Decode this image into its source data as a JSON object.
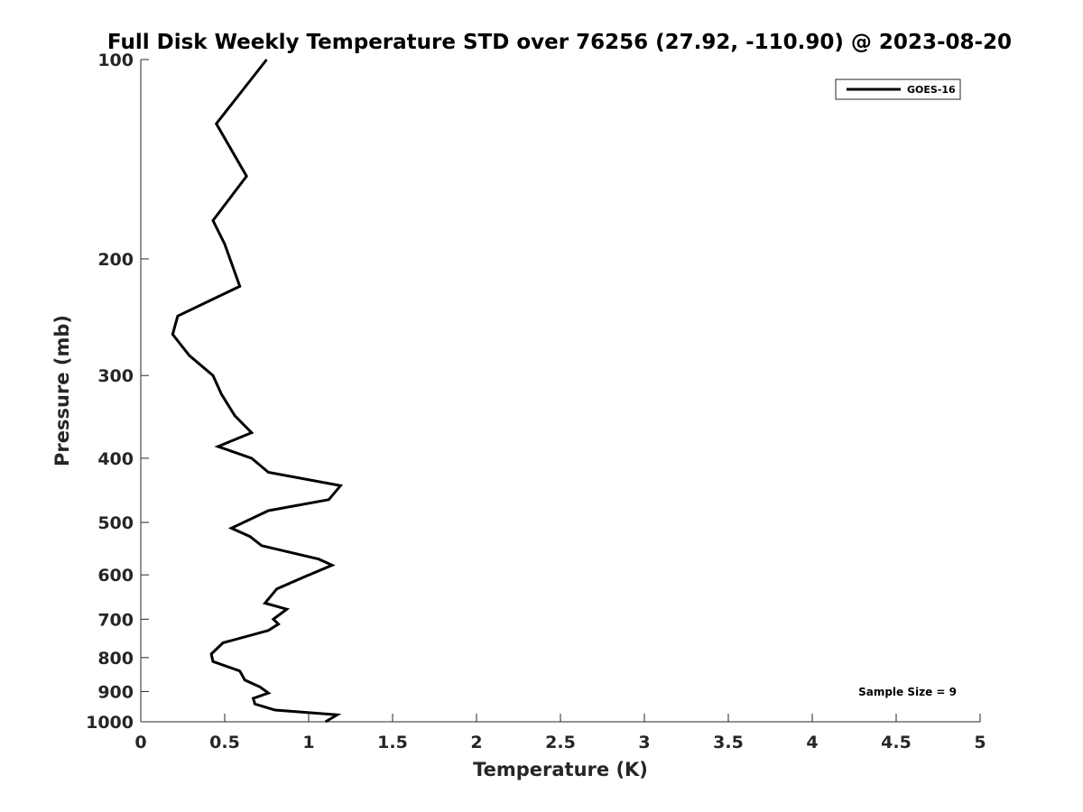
{
  "chart_data": {
    "type": "line",
    "title": "Full Disk Weekly Temperature STD over 76256 (27.92, -110.90) @ 2023-08-20",
    "xlabel": "Temperature (K)",
    "ylabel": "Pressure (mb)",
    "xlim": [
      0,
      5
    ],
    "ylim": [
      100,
      1000
    ],
    "y_scale": "log",
    "y_reversed": true,
    "grid": false,
    "x_ticks": [
      "0",
      "0.5",
      "1",
      "1.5",
      "2",
      "2.5",
      "3",
      "3.5",
      "4",
      "4.5",
      "5"
    ],
    "y_ticks": [
      "100",
      "200",
      "300",
      "400",
      "500",
      "600",
      "700",
      "800",
      "900",
      "1000"
    ],
    "legend": {
      "position": "top-right",
      "entries": [
        "GOES-16"
      ]
    },
    "annotation": "Sample Size = 9",
    "series": [
      {
        "name": "GOES-16",
        "color": "#000000",
        "points": [
          [
            0.75,
            100
          ],
          [
            0.45,
            125
          ],
          [
            0.63,
            150
          ],
          [
            0.43,
            175
          ],
          [
            0.5,
            190
          ],
          [
            0.59,
            220
          ],
          [
            0.22,
            244
          ],
          [
            0.19,
            260
          ],
          [
            0.29,
            280
          ],
          [
            0.43,
            300
          ],
          [
            0.48,
            320
          ],
          [
            0.56,
            345
          ],
          [
            0.66,
            366
          ],
          [
            0.46,
            384
          ],
          [
            0.66,
            400
          ],
          [
            0.76,
            420
          ],
          [
            1.19,
            440
          ],
          [
            1.12,
            462
          ],
          [
            0.76,
            480
          ],
          [
            0.54,
            510
          ],
          [
            0.65,
            525
          ],
          [
            0.72,
            542
          ],
          [
            1.06,
            568
          ],
          [
            1.14,
            580
          ],
          [
            0.97,
            605
          ],
          [
            0.81,
            630
          ],
          [
            0.74,
            662
          ],
          [
            0.87,
            676
          ],
          [
            0.79,
            700
          ],
          [
            0.82,
            712
          ],
          [
            0.76,
            728
          ],
          [
            0.49,
            760
          ],
          [
            0.42,
            790
          ],
          [
            0.43,
            811
          ],
          [
            0.59,
            838
          ],
          [
            0.62,
            865
          ],
          [
            0.71,
            886
          ],
          [
            0.76,
            905
          ],
          [
            0.67,
            922
          ],
          [
            0.68,
            940
          ],
          [
            0.8,
            960
          ],
          [
            1.17,
            976
          ],
          [
            1.1,
            1000
          ]
        ]
      }
    ]
  }
}
